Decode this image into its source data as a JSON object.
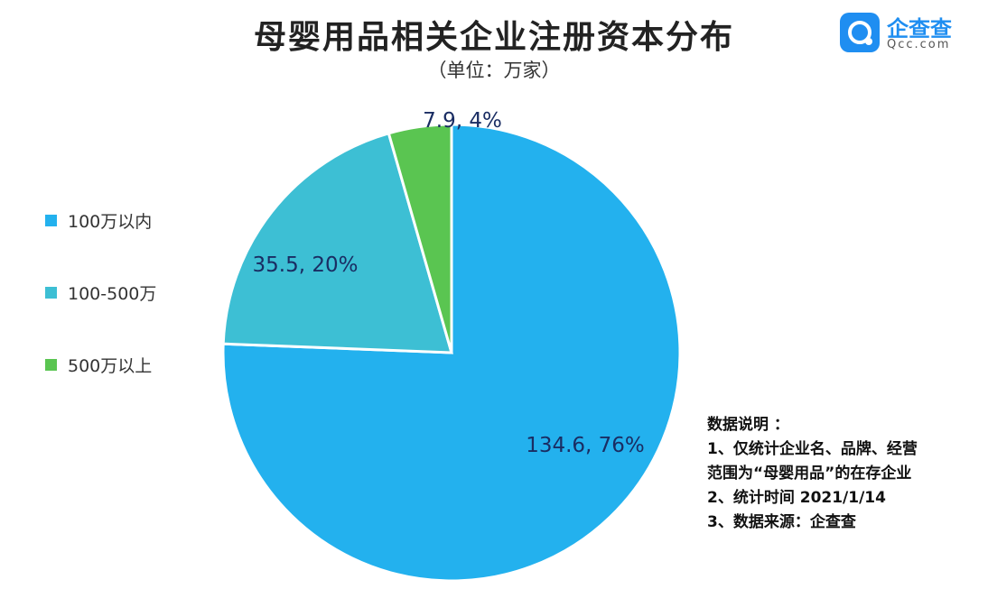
{
  "title": "母婴用品相关企业注册资本分布",
  "subtitle": "（单位：万家）",
  "logo": {
    "name": "企查查",
    "domain": "Qcc.com",
    "icon": "qcc-logo-icon",
    "color": "#1f8ef1"
  },
  "notes": {
    "heading": "数据说明 ：",
    "line1": "1、仅统计企业名、品牌、经营",
    "line2": "范围为“母婴用品”的在存企业",
    "line3": "2、统计时间  2021/1/14",
    "line4": "3、数据来源：企查查"
  },
  "chart_data": {
    "type": "pie",
    "title": "母婴用品相关企业注册资本分布",
    "subtitle": "（单位：万家）",
    "legend_position": "left",
    "slices": [
      {
        "name": "100万以内",
        "value": 134.6,
        "percent": 76,
        "label": "134.6, 76%",
        "color": "#23b1ee"
      },
      {
        "name": "100-500万",
        "value": 35.5,
        "percent": 20,
        "label": "35.5, 20%",
        "color": "#3dbfd4"
      },
      {
        "name": "500万以上",
        "value": 7.9,
        "percent": 4,
        "label": "7.9, 4%",
        "color": "#5ac551"
      }
    ]
  }
}
